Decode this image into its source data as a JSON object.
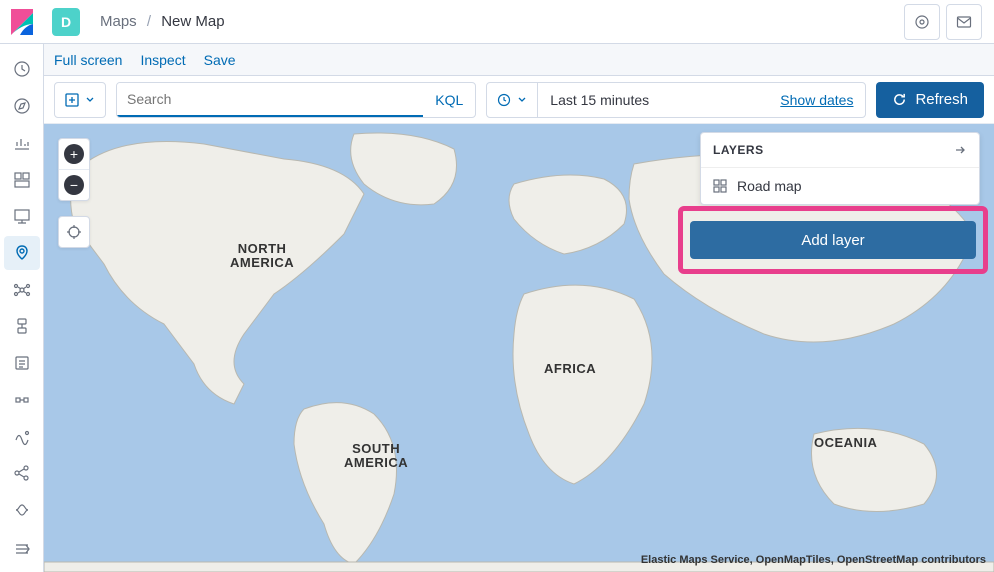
{
  "topbar": {
    "space_letter": "D",
    "breadcrumb_root": "Maps",
    "breadcrumb_current": "New Map"
  },
  "subheader": {
    "full_screen": "Full screen",
    "inspect": "Inspect",
    "save": "Save"
  },
  "toolbar": {
    "search_placeholder": "Search",
    "kql_label": "KQL",
    "time_text": "Last 15 minutes",
    "show_dates": "Show dates",
    "refresh_label": "Refresh"
  },
  "map": {
    "ocean_color": "#a8c8e8",
    "land_fill": "#efeee9",
    "land_stroke": "#b8b8b0",
    "labels": {
      "north_america": "NORTH\nAMERICA",
      "south_america": "SOUTH\nAMERICA",
      "africa": "AFRICA",
      "oceania": "OCEANIA"
    },
    "attribution": "Elastic Maps Service, OpenMapTiles, OpenStreetMap contributors"
  },
  "layers": {
    "title": "LAYERS",
    "items": [
      {
        "label": "Road map"
      }
    ],
    "add_layer_label": "Add layer"
  },
  "colors": {
    "primary": "#006bb4",
    "refresh_bg": "#15609f",
    "highlight": "#e83e8c",
    "add_layer_bg": "#2d6ca2"
  }
}
